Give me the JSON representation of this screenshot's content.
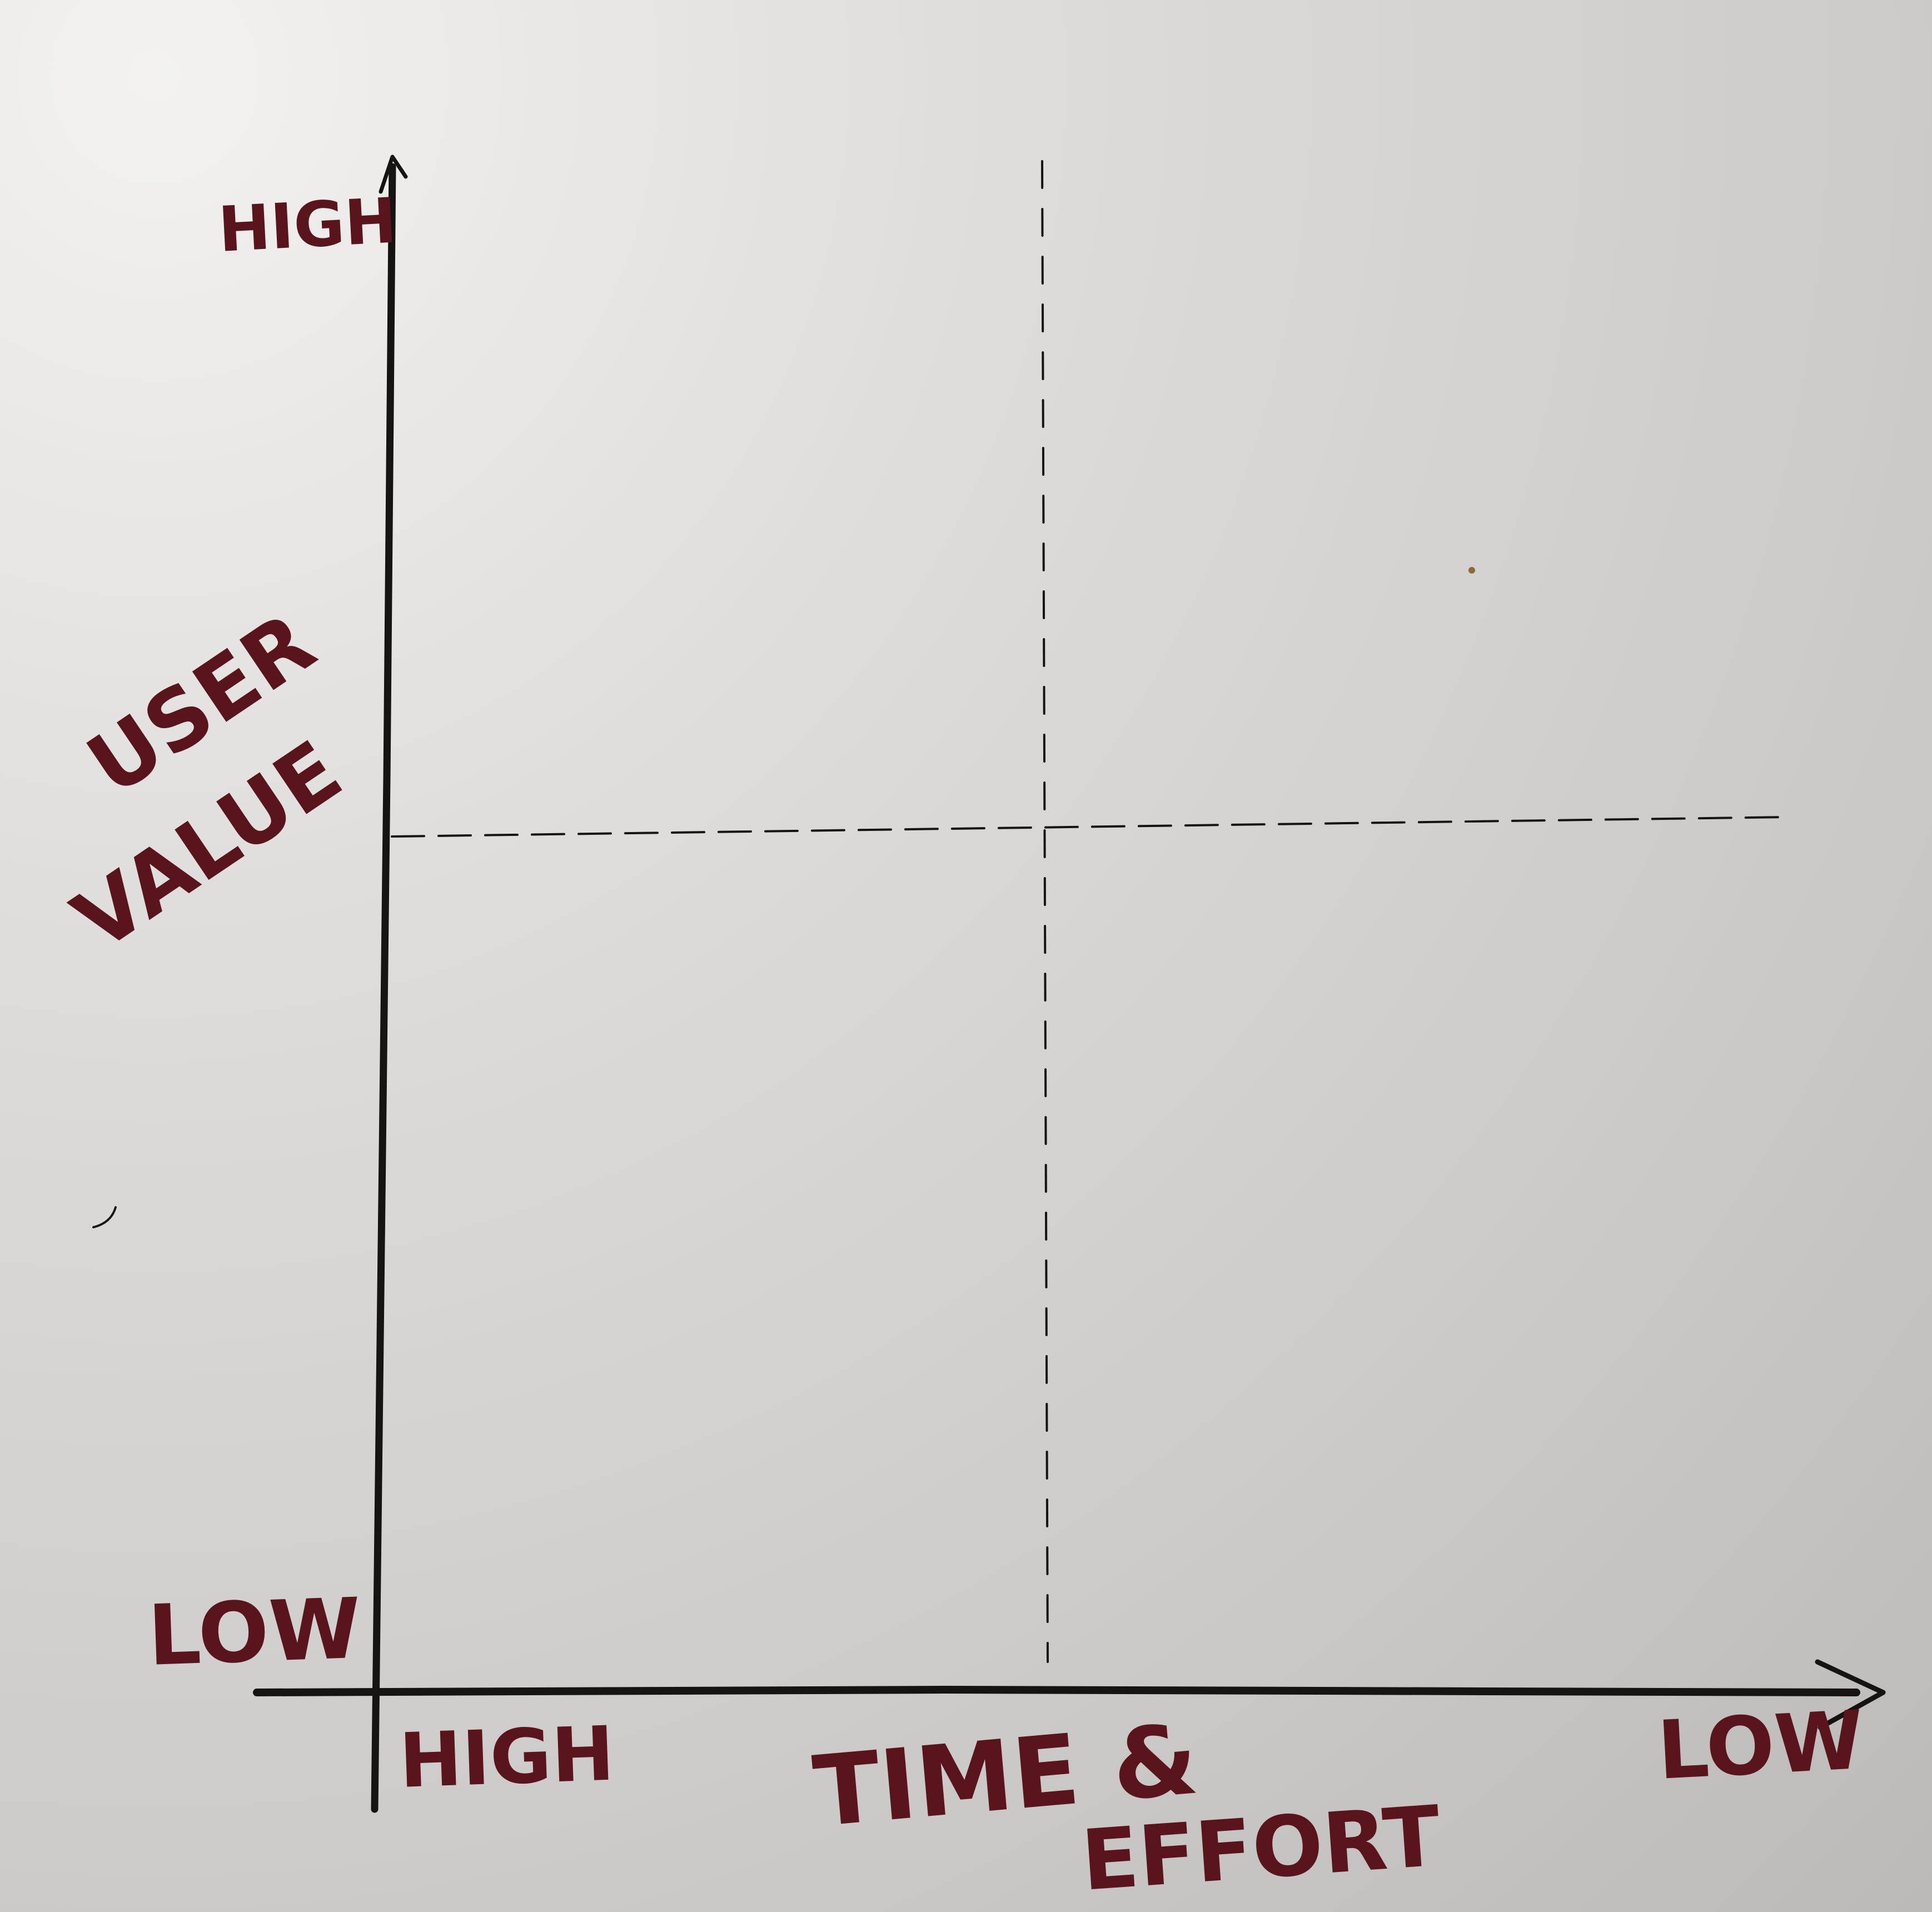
{
  "diagram": {
    "y_axis": {
      "label_line1": "USER",
      "label_line2": "VALUE",
      "top_label": "HIGH",
      "bottom_label": "LOW"
    },
    "x_axis": {
      "label_line1": "TIME &",
      "label_line2": "EFFORT",
      "left_label": "HIGH",
      "right_label": "LOW"
    },
    "ink_color": "#161413",
    "label_color": "#5a141b",
    "paper_color": "#d3d1cf"
  }
}
